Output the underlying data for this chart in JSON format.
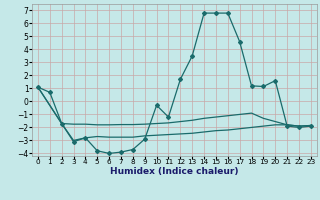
{
  "xlabel": "Humidex (Indice chaleur)",
  "bg_color": "#c5e8e8",
  "grid_color": "#c8a8a8",
  "line_color": "#1a6b6b",
  "xlim": [
    -0.5,
    23.5
  ],
  "ylim": [
    -4.2,
    7.5
  ],
  "yticks": [
    -4,
    -3,
    -2,
    -1,
    0,
    1,
    2,
    3,
    4,
    5,
    6,
    7
  ],
  "xticks": [
    0,
    1,
    2,
    3,
    4,
    5,
    6,
    7,
    8,
    9,
    10,
    11,
    12,
    13,
    14,
    15,
    16,
    17,
    18,
    19,
    20,
    21,
    22,
    23
  ],
  "line1_x": [
    0,
    1,
    2,
    3,
    4,
    5,
    6,
    7,
    8,
    9,
    10,
    11,
    12,
    13,
    14,
    15,
    16,
    17,
    18,
    19,
    20,
    21,
    22,
    23
  ],
  "line1_y": [
    1.1,
    0.7,
    -1.7,
    -3.1,
    -2.8,
    -3.8,
    -4.0,
    -3.9,
    -3.7,
    -2.9,
    -0.3,
    -1.2,
    1.7,
    3.5,
    6.8,
    6.8,
    6.8,
    4.6,
    1.2,
    1.15,
    1.6,
    -1.9,
    -2.0,
    -1.9
  ],
  "line2_x": [
    0,
    2,
    3,
    4,
    5,
    6,
    7,
    8,
    9,
    10,
    11,
    12,
    13,
    14,
    15,
    16,
    17,
    18,
    19,
    20,
    21,
    22,
    23
  ],
  "line2_y": [
    1.1,
    -1.7,
    -1.75,
    -1.75,
    -1.8,
    -1.8,
    -1.78,
    -1.78,
    -1.75,
    -1.7,
    -1.65,
    -1.55,
    -1.45,
    -1.3,
    -1.2,
    -1.1,
    -1.0,
    -0.9,
    -1.3,
    -1.55,
    -1.8,
    -1.9,
    -1.85
  ],
  "line3_x": [
    0,
    2,
    3,
    4,
    5,
    6,
    7,
    8,
    9,
    10,
    11,
    12,
    13,
    14,
    15,
    16,
    17,
    18,
    19,
    20,
    21,
    22,
    23
  ],
  "line3_y": [
    1.1,
    -1.7,
    -3.0,
    -2.8,
    -2.7,
    -2.75,
    -2.75,
    -2.75,
    -2.65,
    -2.6,
    -2.55,
    -2.5,
    -2.45,
    -2.35,
    -2.25,
    -2.2,
    -2.1,
    -2.0,
    -1.9,
    -1.8,
    -1.8,
    -1.9,
    -1.85
  ]
}
